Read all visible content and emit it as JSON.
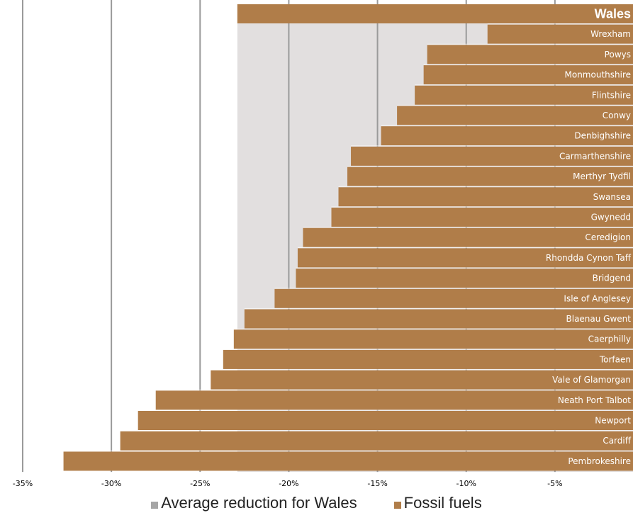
{
  "chart_data": {
    "type": "bar",
    "orientation": "horizontal",
    "title": "",
    "xlabel": "",
    "ylabel": "",
    "xlim": [
      -35,
      0
    ],
    "x_ticks": [
      "-35%",
      "-30%",
      "-25%",
      "-20%",
      "-15%",
      "-10%",
      "-5%"
    ],
    "x_tick_values": [
      -35,
      -30,
      -25,
      -20,
      -15,
      -10,
      -5
    ],
    "grid": "vertical",
    "legend_position": "bottom",
    "colors": {
      "fossil_fuels": "#b07d49",
      "average_band": "#e2dfdf",
      "gridline": "#9a9a9a"
    },
    "reference": {
      "name": "Average reduction for Wales",
      "value": -22.9
    },
    "series": [
      {
        "name": "Fossil fuels",
        "color": "#b07d49",
        "values": [
          -22.9,
          -8.8,
          -12.2,
          -12.4,
          -12.9,
          -13.9,
          -14.8,
          -16.5,
          -16.7,
          -17.2,
          -17.6,
          -19.2,
          -19.5,
          -19.6,
          -20.8,
          -22.5,
          -23.1,
          -23.7,
          -24.4,
          -27.5,
          -28.5,
          -29.5,
          -32.7
        ]
      }
    ],
    "categories": [
      "Wales",
      "Wrexham",
      "Powys",
      "Monmouthshire",
      "Flintshire",
      "Conwy",
      "Denbighshire",
      "Carmarthenshire",
      "Merthyr Tydfil",
      "Swansea",
      "Gwynedd",
      "Ceredigion",
      "Rhondda Cynon Taff",
      "Bridgend",
      "Isle of Anglesey",
      "Blaenau Gwent",
      "Caerphilly",
      "Torfaen",
      "Vale of Glamorgan",
      "Neath Port Talbot",
      "Newport",
      "Cardiff",
      "Pembrokeshire"
    ]
  },
  "legend": {
    "items": [
      {
        "label": "Average reduction for Wales",
        "color": "#a6a6a6"
      },
      {
        "label": "Fossil fuels",
        "color": "#b07d49"
      }
    ]
  }
}
